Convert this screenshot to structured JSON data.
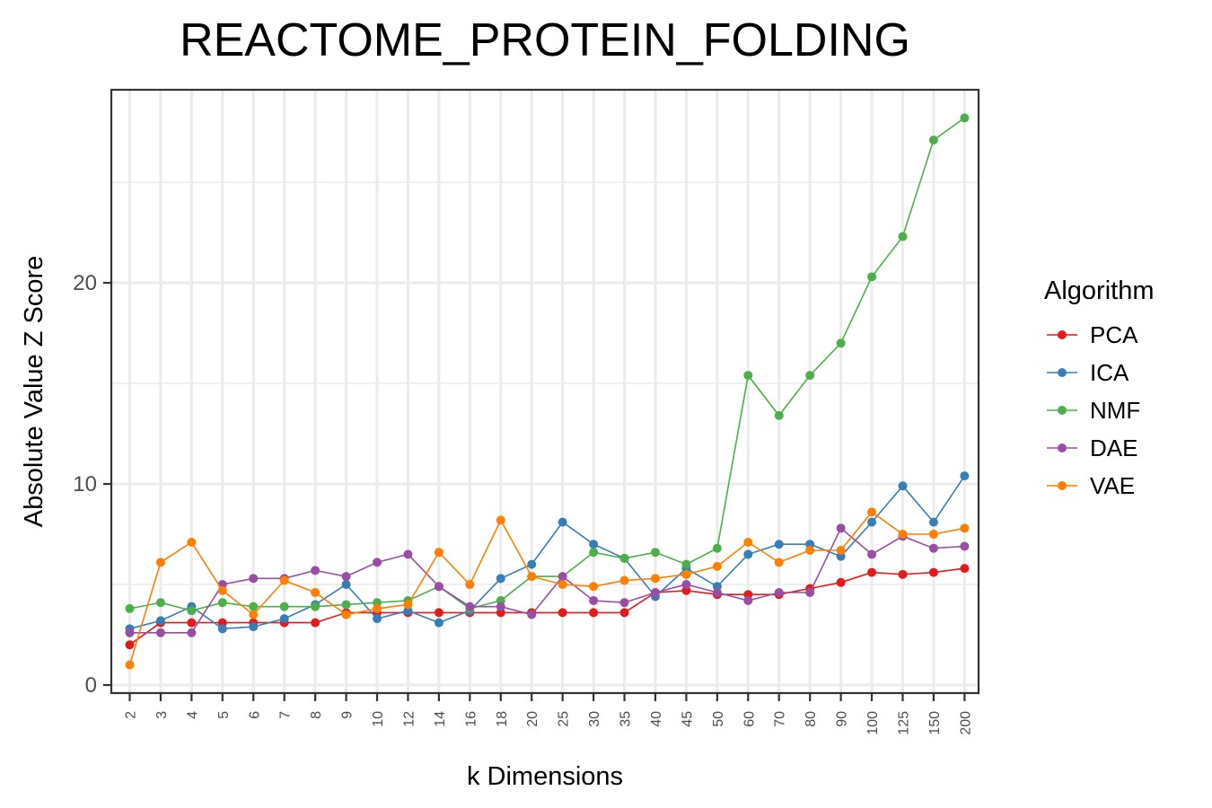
{
  "chart_data": {
    "type": "line",
    "title": "REACTOME_PROTEIN_FOLDING",
    "xlabel": "k Dimensions",
    "ylabel": "Absolute Value Z Score",
    "categories": [
      "2",
      "3",
      "4",
      "5",
      "6",
      "7",
      "8",
      "9",
      "10",
      "12",
      "14",
      "16",
      "18",
      "20",
      "25",
      "30",
      "35",
      "40",
      "45",
      "50",
      "60",
      "70",
      "80",
      "90",
      "100",
      "125",
      "150",
      "200"
    ],
    "y_ticks": [
      0,
      10,
      20
    ],
    "ylim": [
      -0.4,
      29.6
    ],
    "grid": true,
    "legend": {
      "title": "Algorithm",
      "position": "right"
    },
    "series": [
      {
        "name": "PCA",
        "color": "#e41a1c",
        "values": [
          2.0,
          3.1,
          3.1,
          3.1,
          3.1,
          3.1,
          3.1,
          3.6,
          3.6,
          3.6,
          3.6,
          3.6,
          3.6,
          3.6,
          3.6,
          3.6,
          3.6,
          4.6,
          4.7,
          4.5,
          4.5,
          4.5,
          4.8,
          5.1,
          5.6,
          5.5,
          5.6,
          5.8
        ]
      },
      {
        "name": "ICA",
        "color": "#377eb8",
        "values": [
          2.8,
          3.2,
          3.9,
          2.8,
          2.9,
          3.3,
          4.0,
          5.0,
          3.3,
          3.7,
          3.1,
          3.7,
          5.3,
          6.0,
          8.1,
          7.0,
          6.3,
          4.4,
          5.8,
          4.9,
          6.5,
          7.0,
          7.0,
          6.4,
          8.1,
          9.9,
          8.1,
          10.4
        ]
      },
      {
        "name": "NMF",
        "color": "#4daf4a",
        "values": [
          3.8,
          4.1,
          3.7,
          4.1,
          3.9,
          3.9,
          3.9,
          4.0,
          4.1,
          4.2,
          4.9,
          3.8,
          4.2,
          5.4,
          5.4,
          6.6,
          6.3,
          6.6,
          6.0,
          6.8,
          15.4,
          13.4,
          15.4,
          17.0,
          20.3,
          22.3,
          27.1,
          28.2
        ]
      },
      {
        "name": "DAE",
        "color": "#984ea3",
        "values": [
          2.6,
          2.6,
          2.6,
          5.0,
          5.3,
          5.3,
          5.7,
          5.4,
          6.1,
          6.5,
          4.9,
          3.9,
          3.9,
          3.5,
          5.4,
          4.2,
          4.1,
          4.6,
          5.0,
          4.6,
          4.2,
          4.6,
          4.6,
          7.8,
          6.5,
          7.4,
          6.8,
          6.9
        ]
      },
      {
        "name": "VAE",
        "color": "#ff7f00",
        "values": [
          1.0,
          6.1,
          7.1,
          4.7,
          3.5,
          5.2,
          4.6,
          3.5,
          3.8,
          4.0,
          6.6,
          5.0,
          8.2,
          5.4,
          5.0,
          4.9,
          5.2,
          5.3,
          5.5,
          5.9,
          7.1,
          6.1,
          6.7,
          6.7,
          8.6,
          7.5,
          7.5,
          7.8
        ]
      }
    ]
  }
}
